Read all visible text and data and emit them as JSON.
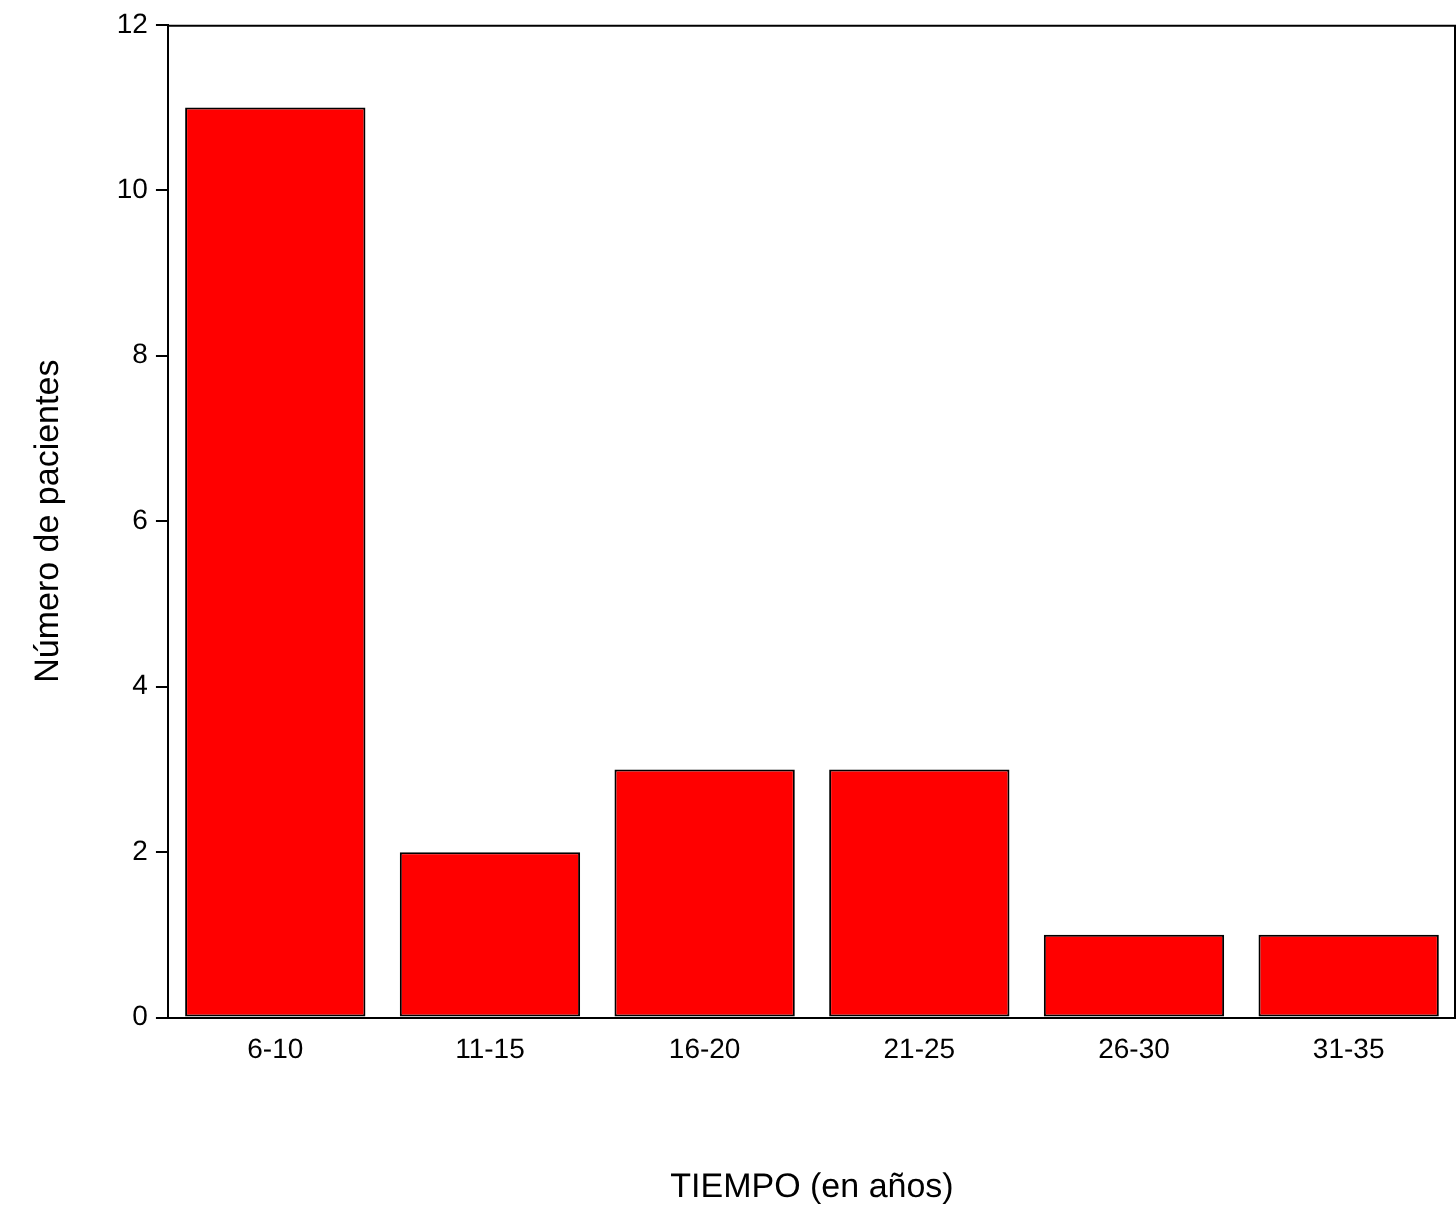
{
  "chart_data": {
    "type": "bar",
    "xlabel": "TIEMPO (en años)",
    "ylabel": "Número de pacientes",
    "categories": [
      "6-10",
      "11-15",
      "16-20",
      "21-25",
      "26-30",
      "31-35"
    ],
    "values": [
      11,
      2,
      3,
      3,
      1,
      1
    ],
    "color": "#ff0000",
    "ylim": [
      0,
      12
    ],
    "yticks": [
      0,
      2,
      4,
      6,
      8,
      10,
      12
    ],
    "grid": false,
    "legend": false
  }
}
